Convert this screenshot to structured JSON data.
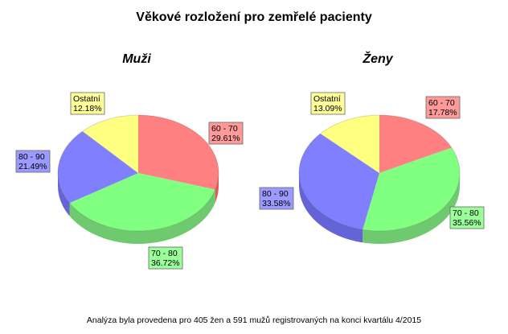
{
  "title": "Věkové rozložení pro zemřelé pacienty",
  "footnote": "Analýza byla provedena pro 405 žen a 591 mužů registrovaných na konci kvartálu 4/2015",
  "chart_data": [
    {
      "type": "pie",
      "title": "Muži",
      "slices": [
        {
          "label": "60 - 70",
          "value": 29.61,
          "value_text": "29.61%",
          "color": "#ff8080",
          "side_color": "#d82020",
          "label_bg": "#ff9a9a"
        },
        {
          "label": "70 - 80",
          "value": 36.72,
          "value_text": "36.72%",
          "color": "#80ff80",
          "side_color": "#3fb83f",
          "label_bg": "#9aff9a"
        },
        {
          "label": "80 - 90",
          "value": 21.49,
          "value_text": "21.49%",
          "color": "#8080ff",
          "side_color": "#3030c8",
          "label_bg": "#9a9aff"
        },
        {
          "label": "Ostatní",
          "value": 12.18,
          "value_text": "12.18%",
          "color": "#ffff80",
          "side_color": "#d0d020",
          "label_bg": "#ffff9a"
        }
      ]
    },
    {
      "type": "pie",
      "title": "Ženy",
      "slices": [
        {
          "label": "60 - 70",
          "value": 17.78,
          "value_text": "17.78%",
          "color": "#ff8080",
          "side_color": "#d82020",
          "label_bg": "#ff9a9a"
        },
        {
          "label": "70 - 80",
          "value": 35.56,
          "value_text": "35.56%",
          "color": "#80ff80",
          "side_color": "#3fb83f",
          "label_bg": "#9aff9a"
        },
        {
          "label": "80 - 90",
          "value": 33.58,
          "value_text": "33.58%",
          "color": "#8080ff",
          "side_color": "#3030c8",
          "label_bg": "#9a9aff"
        },
        {
          "label": "Ostatní",
          "value": 13.09,
          "value_text": "13.09%",
          "color": "#ffff80",
          "side_color": "#d0d020",
          "label_bg": "#ffff9a"
        }
      ]
    }
  ]
}
